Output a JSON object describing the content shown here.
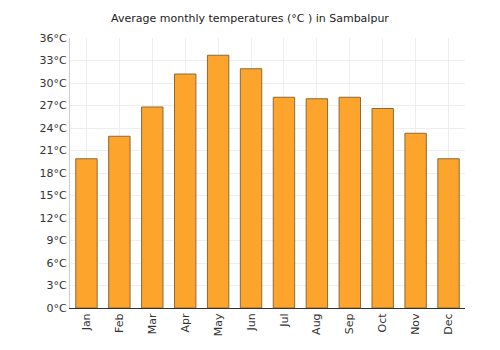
{
  "chart_data": {
    "type": "bar",
    "title": "Average monthly temperatures (°C ) in Sambalpur",
    "categories": [
      "Jan",
      "Feb",
      "Mar",
      "Apr",
      "May",
      "Jun",
      "Jul",
      "Aug",
      "Sep",
      "Oct",
      "Nov",
      "Dec"
    ],
    "values": [
      19.9,
      22.9,
      26.8,
      31.2,
      33.7,
      31.9,
      28.1,
      27.9,
      28.1,
      26.6,
      23.3,
      19.9
    ],
    "color": "#fca42c",
    "ylim": [
      0,
      36
    ],
    "yticks": [
      {
        "value": 0,
        "label": "0°C"
      },
      {
        "value": 3,
        "label": "3°C"
      },
      {
        "value": 6,
        "label": "6°C"
      },
      {
        "value": 9,
        "label": "9°C"
      },
      {
        "value": 12,
        "label": "12°C"
      },
      {
        "value": 15,
        "label": "15°C"
      },
      {
        "value": 18,
        "label": "18°C"
      },
      {
        "value": 21,
        "label": "21°C"
      },
      {
        "value": 24,
        "label": "24°C"
      },
      {
        "value": 27,
        "label": "27°C"
      },
      {
        "value": 30,
        "label": "30°C"
      },
      {
        "value": 33,
        "label": "33°C"
      },
      {
        "value": 36,
        "label": "36°C"
      }
    ],
    "grid": true
  }
}
